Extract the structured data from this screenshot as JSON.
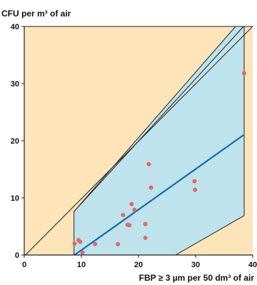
{
  "chart_data": {
    "type": "scatter",
    "title": "",
    "ylabel": "CFU per m³ of air",
    "xlabel": "FBP ≥ 3 µm per 50 dm³ of air",
    "xlim": [
      0,
      40
    ],
    "ylim": [
      0,
      40
    ],
    "x_ticks": [
      "0",
      "10",
      "20",
      "30",
      "40"
    ],
    "y_ticks": [
      "0",
      "10",
      "20",
      "30",
      "40"
    ],
    "grid": false,
    "legend": "none",
    "points": [
      {
        "x": 8.8,
        "y": 2.0
      },
      {
        "x": 9.5,
        "y": 2.6
      },
      {
        "x": 9.8,
        "y": 2.3
      },
      {
        "x": 10.2,
        "y": 0.4
      },
      {
        "x": 12.4,
        "y": 1.9
      },
      {
        "x": 16.4,
        "y": 1.9
      },
      {
        "x": 17.3,
        "y": 7.0
      },
      {
        "x": 18.1,
        "y": 5.3
      },
      {
        "x": 18.4,
        "y": 5.2
      },
      {
        "x": 18.8,
        "y": 8.9
      },
      {
        "x": 19.3,
        "y": 7.9
      },
      {
        "x": 21.2,
        "y": 5.4
      },
      {
        "x": 21.2,
        "y": 3.0
      },
      {
        "x": 21.8,
        "y": 15.9
      },
      {
        "x": 22.2,
        "y": 11.8
      },
      {
        "x": 29.8,
        "y": 12.9
      },
      {
        "x": 29.9,
        "y": 11.4
      },
      {
        "x": 38.5,
        "y": 31.8
      }
    ],
    "regression_line": {
      "x": [
        8.8,
        38.4
      ],
      "y": [
        0.0,
        21.0
      ]
    },
    "prediction_band": {
      "x": [
        8.7,
        37.0,
        38.5,
        38.5,
        26.5,
        8.7
      ],
      "y": [
        7.6,
        40.0,
        40.0,
        6.9,
        0.0,
        0.0
      ]
    },
    "outer_lines": [
      {
        "x": [
          0.2,
          40.0
        ],
        "y": [
          0.0,
          40.0
        ]
      },
      {
        "x": [
          8.7,
          38.4
        ],
        "y": [
          7.6,
          40.0
        ]
      }
    ],
    "colors": {
      "background": "#fde5b9",
      "band": "#bfe3ec",
      "regression": "#1567b6",
      "points": "#e06868",
      "lines": "#222222"
    }
  }
}
